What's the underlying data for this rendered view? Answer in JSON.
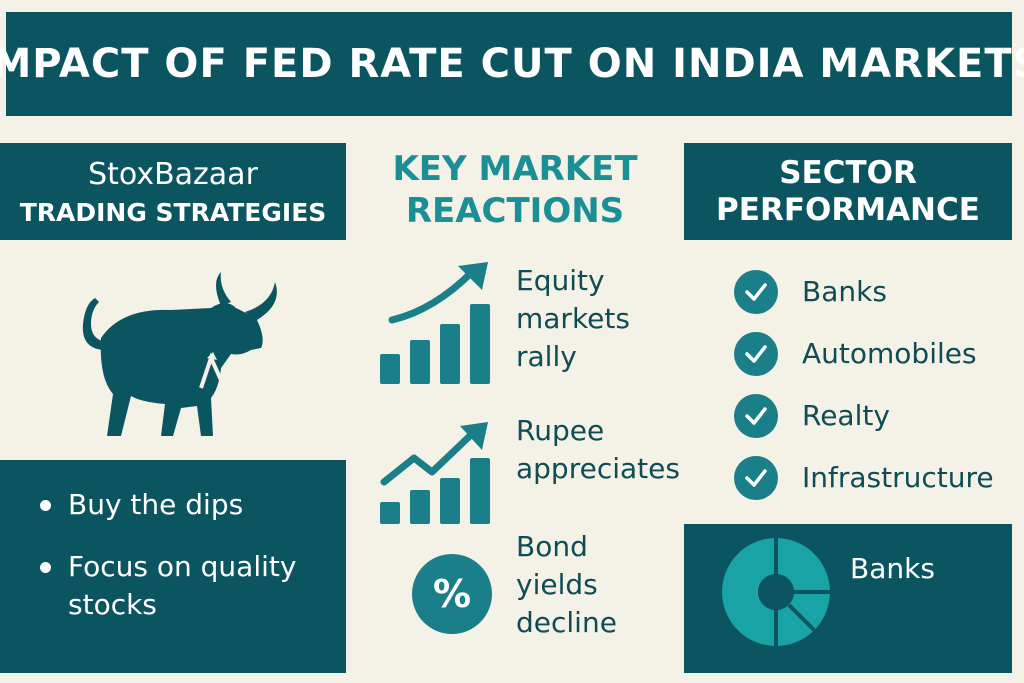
{
  "banner": {
    "title": "IMPACT OF FED RATE CUT ON INDIA MARKETS"
  },
  "strategies": {
    "brand": "StoxBazaar",
    "title": "TRADING STRATEGIES",
    "icon": "bull-icon",
    "items": [
      "Buy the dips",
      "Focus on quality stocks"
    ]
  },
  "reactions": {
    "title_line1": "KEY MARKET",
    "title_line2": "REACTIONS",
    "items": [
      {
        "icon": "rising-bar-chart-icon",
        "text": "Equity\nmarkets\nrally"
      },
      {
        "icon": "zigzag-growth-chart-icon",
        "text": "Rupee\nappreciates"
      },
      {
        "icon": "percent-icon",
        "symbol": "%",
        "text": "Bond\nyields\ndecline"
      }
    ]
  },
  "sectors": {
    "title_line1": "SECTOR",
    "title_line2": "PERFORMANCE",
    "items": [
      "Banks",
      "Automobiles",
      "Realty",
      "Infrastructure"
    ],
    "highlight": "Banks",
    "highlight_icon": "donut-chart-icon"
  },
  "colors": {
    "dark_teal": "#0b5560",
    "accent_teal": "#1a8f95",
    "cream": "#f4f1e6"
  }
}
